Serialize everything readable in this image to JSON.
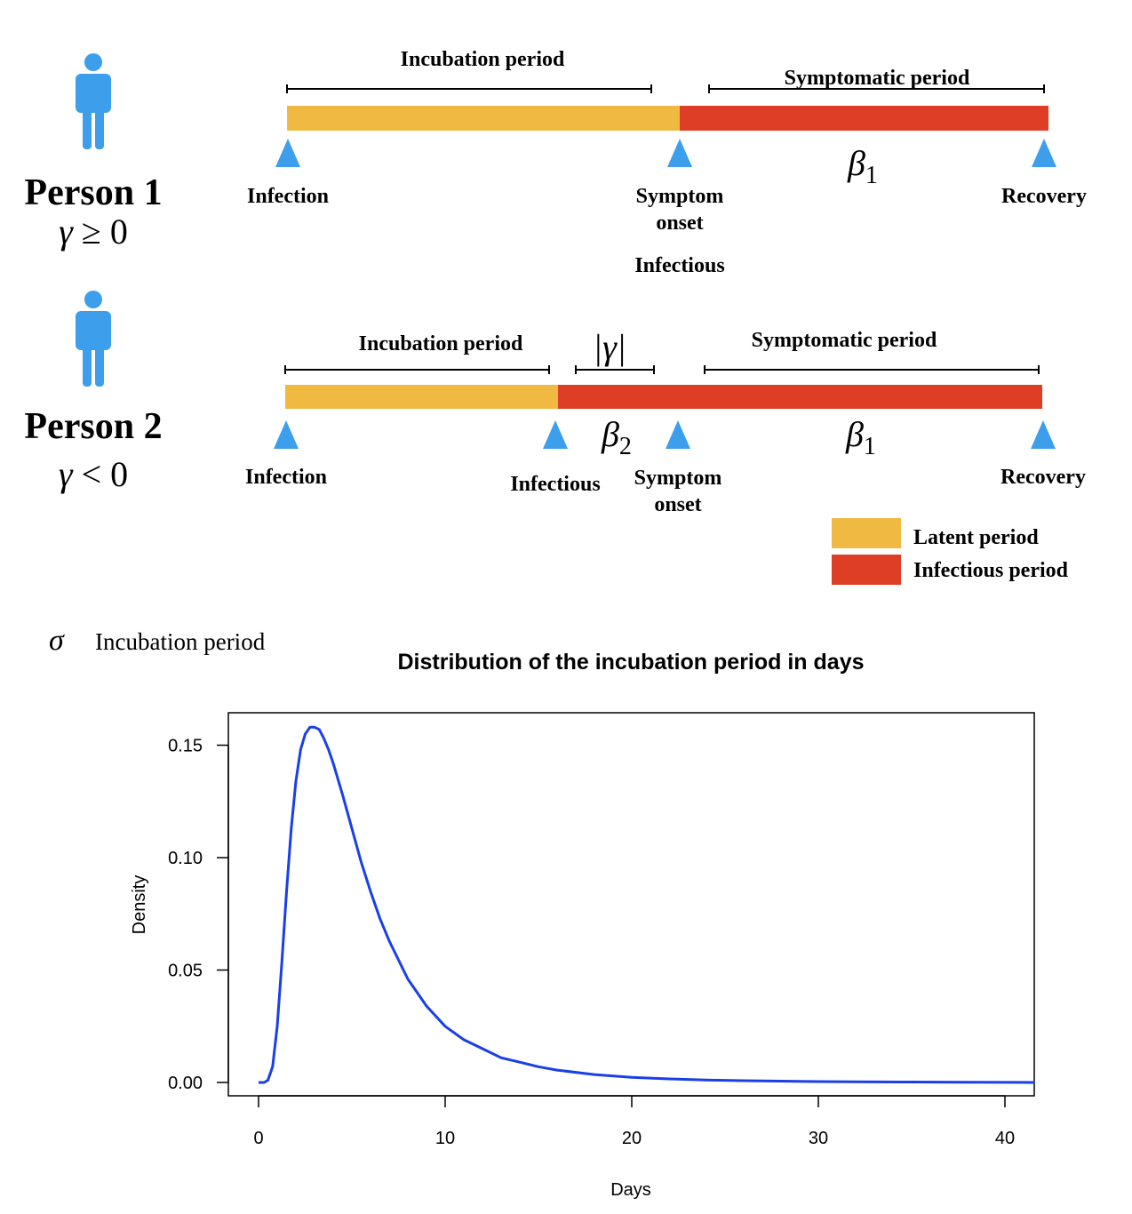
{
  "colors": {
    "latent": "#F0BA42",
    "infectious": "#DE3E26",
    "marker": "#3D9FEC",
    "person": "#3D9FEC",
    "curve": "#1A3FE8"
  },
  "person1": {
    "name": "Person 1",
    "condition_symbol": "γ",
    "condition_rest": " ≥ 0",
    "incubation_label": "Incubation period",
    "symptomatic_label": "Symptomatic period",
    "beta_symbol": "β",
    "beta_sub": "1",
    "events": {
      "infection": "Infection",
      "symptom_line1": "Symptom",
      "symptom_line2": "onset",
      "infectious": "Infectious",
      "recovery": "Recovery"
    }
  },
  "person2": {
    "name": "Person 2",
    "condition_symbol": "γ",
    "condition_rest": " < 0",
    "incubation_label": "Incubation period",
    "gap_label": "|γ|",
    "symptomatic_label": "Symptomatic period",
    "beta2_symbol": "β",
    "beta2_sub": "2",
    "beta1_symbol": "β",
    "beta1_sub": "1",
    "events": {
      "infection": "Infection",
      "infectious": "Infectious",
      "symptom_line1": "Symptom",
      "symptom_line2": "onset",
      "recovery": "Recovery"
    }
  },
  "legend": {
    "latent": "Latent period",
    "infectious": "Infectious period"
  },
  "sigma_note": {
    "symbol": "σ",
    "label": "Incubation period"
  },
  "chart_data": {
    "type": "line",
    "title": "Distribution of the incubation period in days",
    "xlabel": "Days",
    "ylabel": "Density",
    "xlim": [
      0,
      41.6
    ],
    "ylim": [
      0,
      0.16
    ],
    "xticks": [
      "0",
      "10",
      "20",
      "30",
      "40"
    ],
    "yticks": [
      "0.00",
      "0.05",
      "0.10",
      "0.15"
    ],
    "grid": false,
    "series": [
      {
        "x": [
          0,
          0.3,
          0.5,
          0.75,
          1,
          1.25,
          1.5,
          1.75,
          2,
          2.25,
          2.5,
          2.75,
          3,
          3.25,
          3.5,
          3.75,
          4,
          4.5,
          5,
          5.5,
          6,
          6.5,
          7,
          8,
          9,
          10,
          11,
          12,
          13,
          14,
          15,
          16,
          18,
          20,
          22,
          24,
          26,
          28,
          30,
          32,
          35,
          38,
          41.6
        ],
        "values": [
          0,
          0,
          0.001,
          0.007,
          0.025,
          0.054,
          0.085,
          0.113,
          0.134,
          0.148,
          0.155,
          0.158,
          0.158,
          0.157,
          0.153,
          0.148,
          0.142,
          0.128,
          0.113,
          0.098,
          0.085,
          0.073,
          0.063,
          0.046,
          0.034,
          0.025,
          0.019,
          0.015,
          0.011,
          0.009,
          0.007,
          0.0055,
          0.0035,
          0.0023,
          0.0016,
          0.0011,
          0.0008,
          0.0006,
          0.0004,
          0.0003,
          0.0002,
          0.0001,
          0
        ]
      }
    ]
  }
}
